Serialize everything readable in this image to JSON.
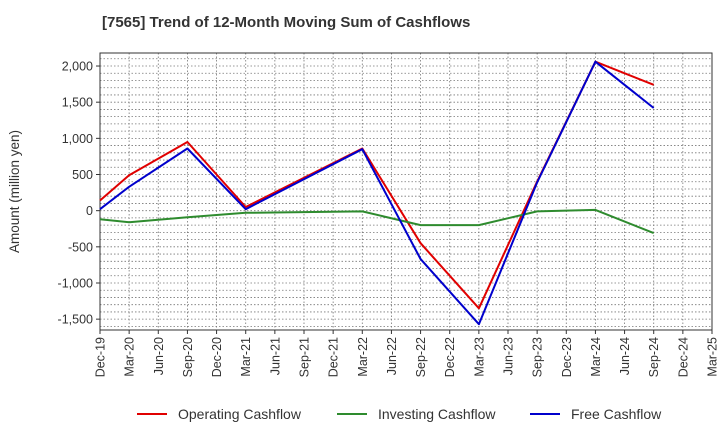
{
  "chart_data": {
    "type": "line",
    "title": "[7565]  Trend of 12-Month Moving Sum of Cashflows",
    "ylabel": "Amount (million yen)",
    "xlabel": "",
    "categories": [
      "Dec-19",
      "Mar-20",
      "Jun-20",
      "Sep-20",
      "Dec-20",
      "Mar-21",
      "Jun-21",
      "Sep-21",
      "Dec-21",
      "Mar-22",
      "Jun-22",
      "Sep-22",
      "Dec-22",
      "Mar-23",
      "Jun-23",
      "Sep-23",
      "Dec-23",
      "Mar-24",
      "Jun-24",
      "Sep-24",
      "Dec-24",
      "Mar-25"
    ],
    "ylim": [
      -1650,
      2180
    ],
    "yticks": [
      2000,
      1500,
      1000,
      500,
      0,
      -500,
      -1000,
      -1500
    ],
    "ytick_labels": [
      "2,000",
      "1,500",
      "1,000",
      "500",
      "0",
      "-500",
      "-1,000",
      "-1,500"
    ],
    "grid": true,
    "legend_position": "bottom",
    "series": [
      {
        "name": "Operating Cashflow",
        "color": "#e00000",
        "values": [
          140,
          490,
          null,
          950,
          null,
          50,
          null,
          null,
          null,
          860,
          null,
          -450,
          null,
          -1350,
          null,
          400,
          null,
          2060,
          null,
          1740,
          null,
          null
        ]
      },
      {
        "name": "Investing Cashflow",
        "color": "#2e8b2e",
        "values": [
          -120,
          -160,
          null,
          -90,
          null,
          -30,
          null,
          null,
          null,
          -10,
          null,
          -200,
          null,
          -200,
          null,
          -10,
          null,
          10,
          null,
          -310,
          null,
          null
        ]
      },
      {
        "name": "Free Cashflow",
        "color": "#0000cc",
        "values": [
          20,
          330,
          null,
          860,
          null,
          20,
          null,
          null,
          null,
          850,
          null,
          -670,
          null,
          -1570,
          null,
          390,
          null,
          2060,
          null,
          1420,
          null,
          null
        ]
      }
    ]
  }
}
